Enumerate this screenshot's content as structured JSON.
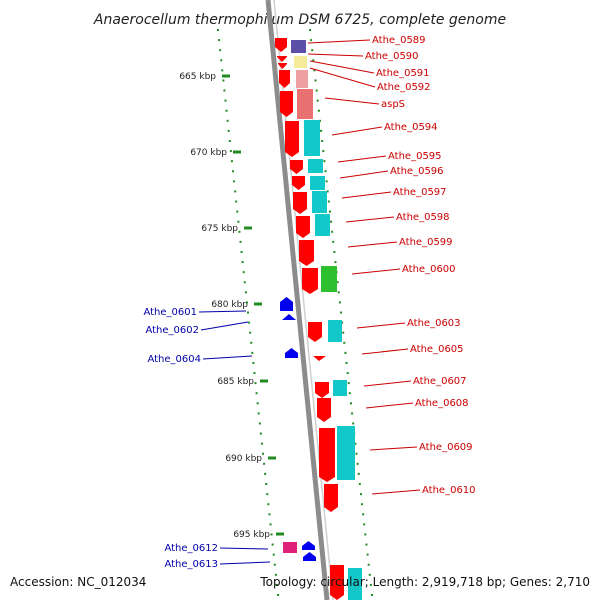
{
  "title": "Anaerocellum thermophilum DSM 6725, complete genome",
  "footer": {
    "accession": "Accession: NC_012034",
    "summary": "Topology: circular; Length: 2,919,718 bp; Genes: 2,710"
  },
  "colors": {
    "forward_cds": "#ff0000",
    "reverse_cds": "#0000ee",
    "backbone": "#8c8c8c",
    "tick": "#228b22",
    "forward_label": "#cc0000",
    "reverse_label": "#0000aa",
    "pink_cds": "#e0217a"
  },
  "ticks": [
    {
      "label": "665 kbp"
    },
    {
      "label": "670 kbp"
    },
    {
      "label": "675 kbp"
    },
    {
      "label": "680 kbp"
    },
    {
      "label": "685 kbp"
    },
    {
      "label": "690 kbp"
    },
    {
      "label": "695 kbp"
    }
  ],
  "forward_genes": [
    {
      "label": "Athe_0589"
    },
    {
      "label": "Athe_0590"
    },
    {
      "label": "Athe_0591"
    },
    {
      "label": "Athe_0592"
    },
    {
      "label": "aspS"
    },
    {
      "label": "Athe_0594"
    },
    {
      "label": "Athe_0595"
    },
    {
      "label": "Athe_0596"
    },
    {
      "label": "Athe_0597"
    },
    {
      "label": "Athe_0598"
    },
    {
      "label": "Athe_0599"
    },
    {
      "label": "Athe_0600"
    },
    {
      "label": "Athe_0603"
    },
    {
      "label": "Athe_0605"
    },
    {
      "label": "Athe_0607"
    },
    {
      "label": "Athe_0608"
    },
    {
      "label": "Athe_0609"
    },
    {
      "label": "Athe_0610"
    }
  ],
  "reverse_genes": [
    {
      "label": "Athe_0601"
    },
    {
      "label": "Athe_0602"
    },
    {
      "label": "Athe_0604"
    },
    {
      "label": "Athe_0612"
    },
    {
      "label": "Athe_0613"
    }
  ]
}
